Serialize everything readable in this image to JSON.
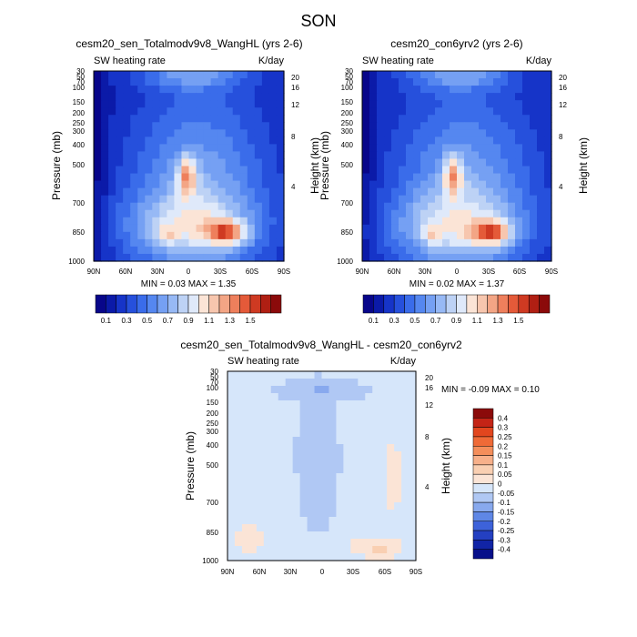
{
  "title": "SON",
  "chart_data": [
    {
      "type": "heatmap",
      "title": "cesm20_sen_Totalmodv9v8_WangHL (yrs 2-6)",
      "left_label": "SW heating rate",
      "right_label": "K/day",
      "ylabel": "Pressure (mb)",
      "ylabel_right": "Height (km)",
      "x_ticks": [
        "90N",
        "60N",
        "30N",
        "0",
        "30S",
        "60S",
        "90S"
      ],
      "y_ticks": [
        "30",
        "50",
        "70",
        "100",
        "150",
        "200",
        "250",
        "300",
        "400",
        "500",
        "700",
        "850",
        "1000"
      ],
      "height_ticks": [
        "20",
        "16",
        "12",
        "8",
        "4"
      ],
      "stats": "MIN =  0.03   MAX =   1.35",
      "field": "mean"
    },
    {
      "type": "heatmap",
      "title": "cesm20_con6yrv2 (yrs 2-6)",
      "left_label": "SW heating rate",
      "right_label": "K/day",
      "ylabel": "Pressure (mb)",
      "ylabel_right": "Height (km)",
      "x_ticks": [
        "90N",
        "60N",
        "30N",
        "0",
        "30S",
        "60S",
        "90S"
      ],
      "y_ticks": [
        "30",
        "50",
        "70",
        "100",
        "150",
        "200",
        "250",
        "300",
        "400",
        "500",
        "700",
        "850",
        "1000"
      ],
      "height_ticks": [
        "20",
        "16",
        "12",
        "8",
        "4"
      ],
      "stats": "MIN =  0.02   MAX =   1.37",
      "field": "mean"
    },
    {
      "type": "heatmap",
      "title": "cesm20_sen_Totalmodv9v8_WangHL - cesm20_con6yrv2",
      "left_label": "SW heating rate",
      "right_label": "K/day",
      "ylabel": "Pressure (mb)",
      "ylabel_right": "Height (km)",
      "x_ticks": [
        "90N",
        "60N",
        "30N",
        "0",
        "30S",
        "60S",
        "90S"
      ],
      "y_ticks": [
        "30",
        "50",
        "70",
        "100",
        "150",
        "200",
        "250",
        "300",
        "400",
        "500",
        "700",
        "850",
        "1000"
      ],
      "height_ticks": [
        "20",
        "16",
        "12",
        "8",
        "4"
      ],
      "stats": "MIN =  -0.09   MAX =    0.10",
      "field": "diff"
    }
  ],
  "colorbar_mean": {
    "labels": [
      "0.1",
      "0.3",
      "0.5",
      "0.7",
      "0.9",
      "1.1",
      "1.3",
      "1.5"
    ],
    "colors": [
      "#08068a",
      "#0b1aa8",
      "#1634c8",
      "#2650dc",
      "#3a6cea",
      "#5587f0",
      "#75a0f3",
      "#97b9f5",
      "#bdd2f5",
      "#dfe9fa",
      "#fbe4d6",
      "#f7c6ae",
      "#f3a585",
      "#ee7f5c",
      "#e45a39",
      "#cf3a22",
      "#b01f13",
      "#8b0a0a"
    ]
  },
  "colorbar_diff": {
    "labels": [
      "0.4",
      "0.3",
      "0.25",
      "0.2",
      "0.15",
      "0.1",
      "0.05",
      "0",
      "-0.05",
      "-0.1",
      "-0.15",
      "-0.2",
      "-0.25",
      "-0.3",
      "-0.4"
    ],
    "colors": [
      "#8b0a0a",
      "#c42416",
      "#e2461e",
      "#ef6a37",
      "#f48e5b",
      "#f7b08a",
      "#f9cfb2",
      "#fbe4d6",
      "#d6e6fa",
      "#b0c8f4",
      "#88a9ee",
      "#5f87e6",
      "#3d62da",
      "#2440c2",
      "#1124a6",
      "#07108a"
    ]
  }
}
